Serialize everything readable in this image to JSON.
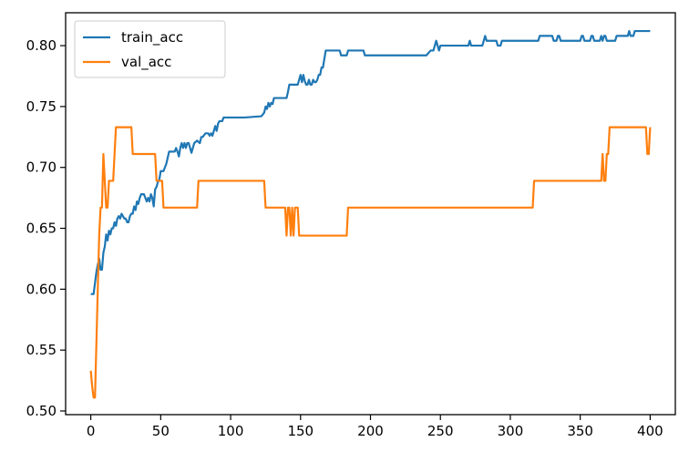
{
  "chart_data": {
    "type": "line",
    "title": "",
    "xlabel": "",
    "ylabel": "",
    "xlim": [
      -18,
      418
    ],
    "ylim": [
      0.497,
      0.827
    ],
    "xticks": [
      0,
      50,
      100,
      150,
      200,
      250,
      300,
      350,
      400
    ],
    "yticks": [
      0.5,
      0.55,
      0.6,
      0.65,
      0.7,
      0.75,
      0.8
    ],
    "ytick_labels": [
      "0.50",
      "0.55",
      "0.60",
      "0.65",
      "0.70",
      "0.75",
      "0.80"
    ],
    "xtick_labels": [
      "0",
      "50",
      "100",
      "150",
      "200",
      "250",
      "300",
      "350",
      "400"
    ],
    "grid": false,
    "legend_position": "top-left",
    "series": [
      {
        "name": "train_acc",
        "color": "#1f77b4",
        "points": [
          [
            0,
            0.596
          ],
          [
            2,
            0.596
          ],
          [
            3,
            0.605
          ],
          [
            4,
            0.614
          ],
          [
            5,
            0.62
          ],
          [
            6,
            0.625
          ],
          [
            7,
            0.616
          ],
          [
            8,
            0.616
          ],
          [
            9,
            0.63
          ],
          [
            10,
            0.635
          ],
          [
            11,
            0.645
          ],
          [
            12,
            0.64
          ],
          [
            13,
            0.648
          ],
          [
            14,
            0.645
          ],
          [
            15,
            0.65
          ],
          [
            16,
            0.65
          ],
          [
            17,
            0.655
          ],
          [
            18,
            0.652
          ],
          [
            19,
            0.658
          ],
          [
            20,
            0.66
          ],
          [
            21,
            0.658
          ],
          [
            22,
            0.662
          ],
          [
            23,
            0.66
          ],
          [
            24,
            0.658
          ],
          [
            25,
            0.658
          ],
          [
            26,
            0.655
          ],
          [
            27,
            0.655
          ],
          [
            28,
            0.66
          ],
          [
            29,
            0.662
          ],
          [
            30,
            0.662
          ],
          [
            31,
            0.668
          ],
          [
            32,
            0.665
          ],
          [
            33,
            0.672
          ],
          [
            34,
            0.67
          ],
          [
            35,
            0.675
          ],
          [
            36,
            0.678
          ],
          [
            38,
            0.678
          ],
          [
            39,
            0.675
          ],
          [
            40,
            0.672
          ],
          [
            41,
            0.675
          ],
          [
            42,
            0.672
          ],
          [
            43,
            0.678
          ],
          [
            44,
            0.675
          ],
          [
            45,
            0.668
          ],
          [
            46,
            0.682
          ],
          [
            47,
            0.684
          ],
          [
            48,
            0.688
          ],
          [
            49,
            0.69
          ],
          [
            50,
            0.697
          ],
          [
            52,
            0.697
          ],
          [
            53,
            0.7
          ],
          [
            54,
            0.703
          ],
          [
            55,
            0.708
          ],
          [
            56,
            0.713
          ],
          [
            60,
            0.713
          ],
          [
            61,
            0.716
          ],
          [
            62,
            0.713
          ],
          [
            63,
            0.709
          ],
          [
            64,
            0.716
          ],
          [
            65,
            0.72
          ],
          [
            66,
            0.716
          ],
          [
            67,
            0.72
          ],
          [
            68,
            0.716
          ],
          [
            69,
            0.72
          ],
          [
            70,
            0.72
          ],
          [
            71,
            0.716
          ],
          [
            72,
            0.712
          ],
          [
            73,
            0.716
          ],
          [
            74,
            0.72
          ],
          [
            76,
            0.722
          ],
          [
            78,
            0.72
          ],
          [
            79,
            0.725
          ],
          [
            80,
            0.725
          ],
          [
            82,
            0.728
          ],
          [
            84,
            0.728
          ],
          [
            85,
            0.726
          ],
          [
            86,
            0.728
          ],
          [
            87,
            0.726
          ],
          [
            88,
            0.73
          ],
          [
            89,
            0.734
          ],
          [
            90,
            0.73
          ],
          [
            91,
            0.736
          ],
          [
            92,
            0.738
          ],
          [
            94,
            0.738
          ],
          [
            95,
            0.741
          ],
          [
            110,
            0.741
          ],
          [
            122,
            0.742
          ],
          [
            124,
            0.745
          ],
          [
            125,
            0.75
          ],
          [
            126,
            0.748
          ],
          [
            127,
            0.753
          ],
          [
            128,
            0.75
          ],
          [
            129,
            0.753
          ],
          [
            130,
            0.752
          ],
          [
            131,
            0.757
          ],
          [
            140,
            0.757
          ],
          [
            141,
            0.762
          ],
          [
            142,
            0.768
          ],
          [
            148,
            0.768
          ],
          [
            149,
            0.772
          ],
          [
            150,
            0.776
          ],
          [
            151,
            0.77
          ],
          [
            152,
            0.776
          ],
          [
            153,
            0.771
          ],
          [
            154,
            0.768
          ],
          [
            155,
            0.768
          ],
          [
            156,
            0.772
          ],
          [
            157,
            0.768
          ],
          [
            158,
            0.768
          ],
          [
            159,
            0.772
          ],
          [
            160,
            0.77
          ],
          [
            161,
            0.77
          ],
          [
            162,
            0.772
          ],
          [
            163,
            0.776
          ],
          [
            164,
            0.776
          ],
          [
            165,
            0.782
          ],
          [
            166,
            0.782
          ],
          [
            167,
            0.789
          ],
          [
            168,
            0.796
          ],
          [
            178,
            0.796
          ],
          [
            179,
            0.792
          ],
          [
            183,
            0.792
          ],
          [
            184,
            0.796
          ],
          [
            195,
            0.796
          ],
          [
            196,
            0.792
          ],
          [
            240,
            0.792
          ],
          [
            243,
            0.796
          ],
          [
            245,
            0.796
          ],
          [
            246,
            0.8
          ],
          [
            247,
            0.804
          ],
          [
            248,
            0.8
          ],
          [
            249,
            0.796
          ],
          [
            250,
            0.8
          ],
          [
            270,
            0.8
          ],
          [
            271,
            0.804
          ],
          [
            272,
            0.8
          ],
          [
            280,
            0.8
          ],
          [
            281,
            0.804
          ],
          [
            282,
            0.808
          ],
          [
            283,
            0.804
          ],
          [
            290,
            0.804
          ],
          [
            291,
            0.8
          ],
          [
            293,
            0.8
          ],
          [
            294,
            0.804
          ],
          [
            320,
            0.804
          ],
          [
            321,
            0.808
          ],
          [
            330,
            0.808
          ],
          [
            331,
            0.804
          ],
          [
            333,
            0.804
          ],
          [
            334,
            0.808
          ],
          [
            335,
            0.808
          ],
          [
            336,
            0.804
          ],
          [
            350,
            0.804
          ],
          [
            351,
            0.808
          ],
          [
            352,
            0.808
          ],
          [
            353,
            0.804
          ],
          [
            357,
            0.804
          ],
          [
            358,
            0.808
          ],
          [
            359,
            0.808
          ],
          [
            360,
            0.804
          ],
          [
            364,
            0.804
          ],
          [
            365,
            0.808
          ],
          [
            366,
            0.804
          ],
          [
            367,
            0.808
          ],
          [
            368,
            0.808
          ],
          [
            369,
            0.804
          ],
          [
            375,
            0.804
          ],
          [
            376,
            0.808
          ],
          [
            384,
            0.808
          ],
          [
            385,
            0.812
          ],
          [
            386,
            0.808
          ],
          [
            388,
            0.808
          ],
          [
            389,
            0.812
          ],
          [
            400,
            0.812
          ]
        ]
      },
      {
        "name": "val_acc",
        "color": "#ff7f0e",
        "points": [
          [
            0,
            0.533
          ],
          [
            1,
            0.52
          ],
          [
            2,
            0.511
          ],
          [
            3,
            0.511
          ],
          [
            4,
            0.555
          ],
          [
            5,
            0.6
          ],
          [
            6,
            0.644
          ],
          [
            7,
            0.667
          ],
          [
            8,
            0.667
          ],
          [
            9,
            0.711
          ],
          [
            10,
            0.689
          ],
          [
            11,
            0.667
          ],
          [
            12,
            0.667
          ],
          [
            13,
            0.689
          ],
          [
            16,
            0.689
          ],
          [
            17,
            0.711
          ],
          [
            18,
            0.733
          ],
          [
            29,
            0.733
          ],
          [
            30,
            0.711
          ],
          [
            46,
            0.711
          ],
          [
            47,
            0.689
          ],
          [
            51,
            0.689
          ],
          [
            52,
            0.667
          ],
          [
            76,
            0.667
          ],
          [
            77,
            0.689
          ],
          [
            124,
            0.689
          ],
          [
            125,
            0.667
          ],
          [
            139,
            0.667
          ],
          [
            140,
            0.644
          ],
          [
            141,
            0.667
          ],
          [
            142,
            0.667
          ],
          [
            143,
            0.644
          ],
          [
            144,
            0.667
          ],
          [
            145,
            0.644
          ],
          [
            146,
            0.667
          ],
          [
            148,
            0.667
          ],
          [
            149,
            0.644
          ],
          [
            183,
            0.644
          ],
          [
            184,
            0.667
          ],
          [
            316,
            0.667
          ],
          [
            317,
            0.689
          ],
          [
            365,
            0.689
          ],
          [
            366,
            0.711
          ],
          [
            367,
            0.689
          ],
          [
            368,
            0.689
          ],
          [
            369,
            0.711
          ],
          [
            370,
            0.711
          ],
          [
            371,
            0.733
          ],
          [
            397,
            0.733
          ],
          [
            398,
            0.711
          ],
          [
            399,
            0.711
          ],
          [
            400,
            0.733
          ]
        ]
      }
    ]
  }
}
